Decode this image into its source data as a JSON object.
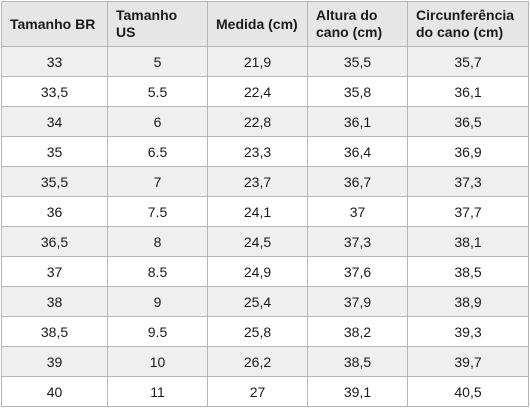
{
  "table": {
    "headers": [
      "Tamanho BR",
      "Tamanho US",
      "Medida (cm)",
      "Altura do cano (cm)",
      "Circunferência do cano (cm)"
    ],
    "rows": [
      [
        "33",
        "5",
        "21,9",
        "35,5",
        "35,7"
      ],
      [
        "33,5",
        "5.5",
        "22,4",
        "35,8",
        "36,1"
      ],
      [
        "34",
        "6",
        "22,8",
        "36,1",
        "36,5"
      ],
      [
        "35",
        "6.5",
        "23,3",
        "36,4",
        "36,9"
      ],
      [
        "35,5",
        "7",
        "23,7",
        "36,7",
        "37,3"
      ],
      [
        "36",
        "7.5",
        "24,1",
        "37",
        "37,7"
      ],
      [
        "36,5",
        "8",
        "24,5",
        "37,3",
        "38,1"
      ],
      [
        "37",
        "8.5",
        "24,9",
        "37,6",
        "38,5"
      ],
      [
        "38",
        "9",
        "25,4",
        "37,9",
        "38,9"
      ],
      [
        "38,5",
        "9.5",
        "25,8",
        "38,2",
        "39,3"
      ],
      [
        "39",
        "10",
        "26,2",
        "38,5",
        "39,7"
      ],
      [
        "40",
        "11",
        "27",
        "39,1",
        "40,5"
      ]
    ]
  }
}
